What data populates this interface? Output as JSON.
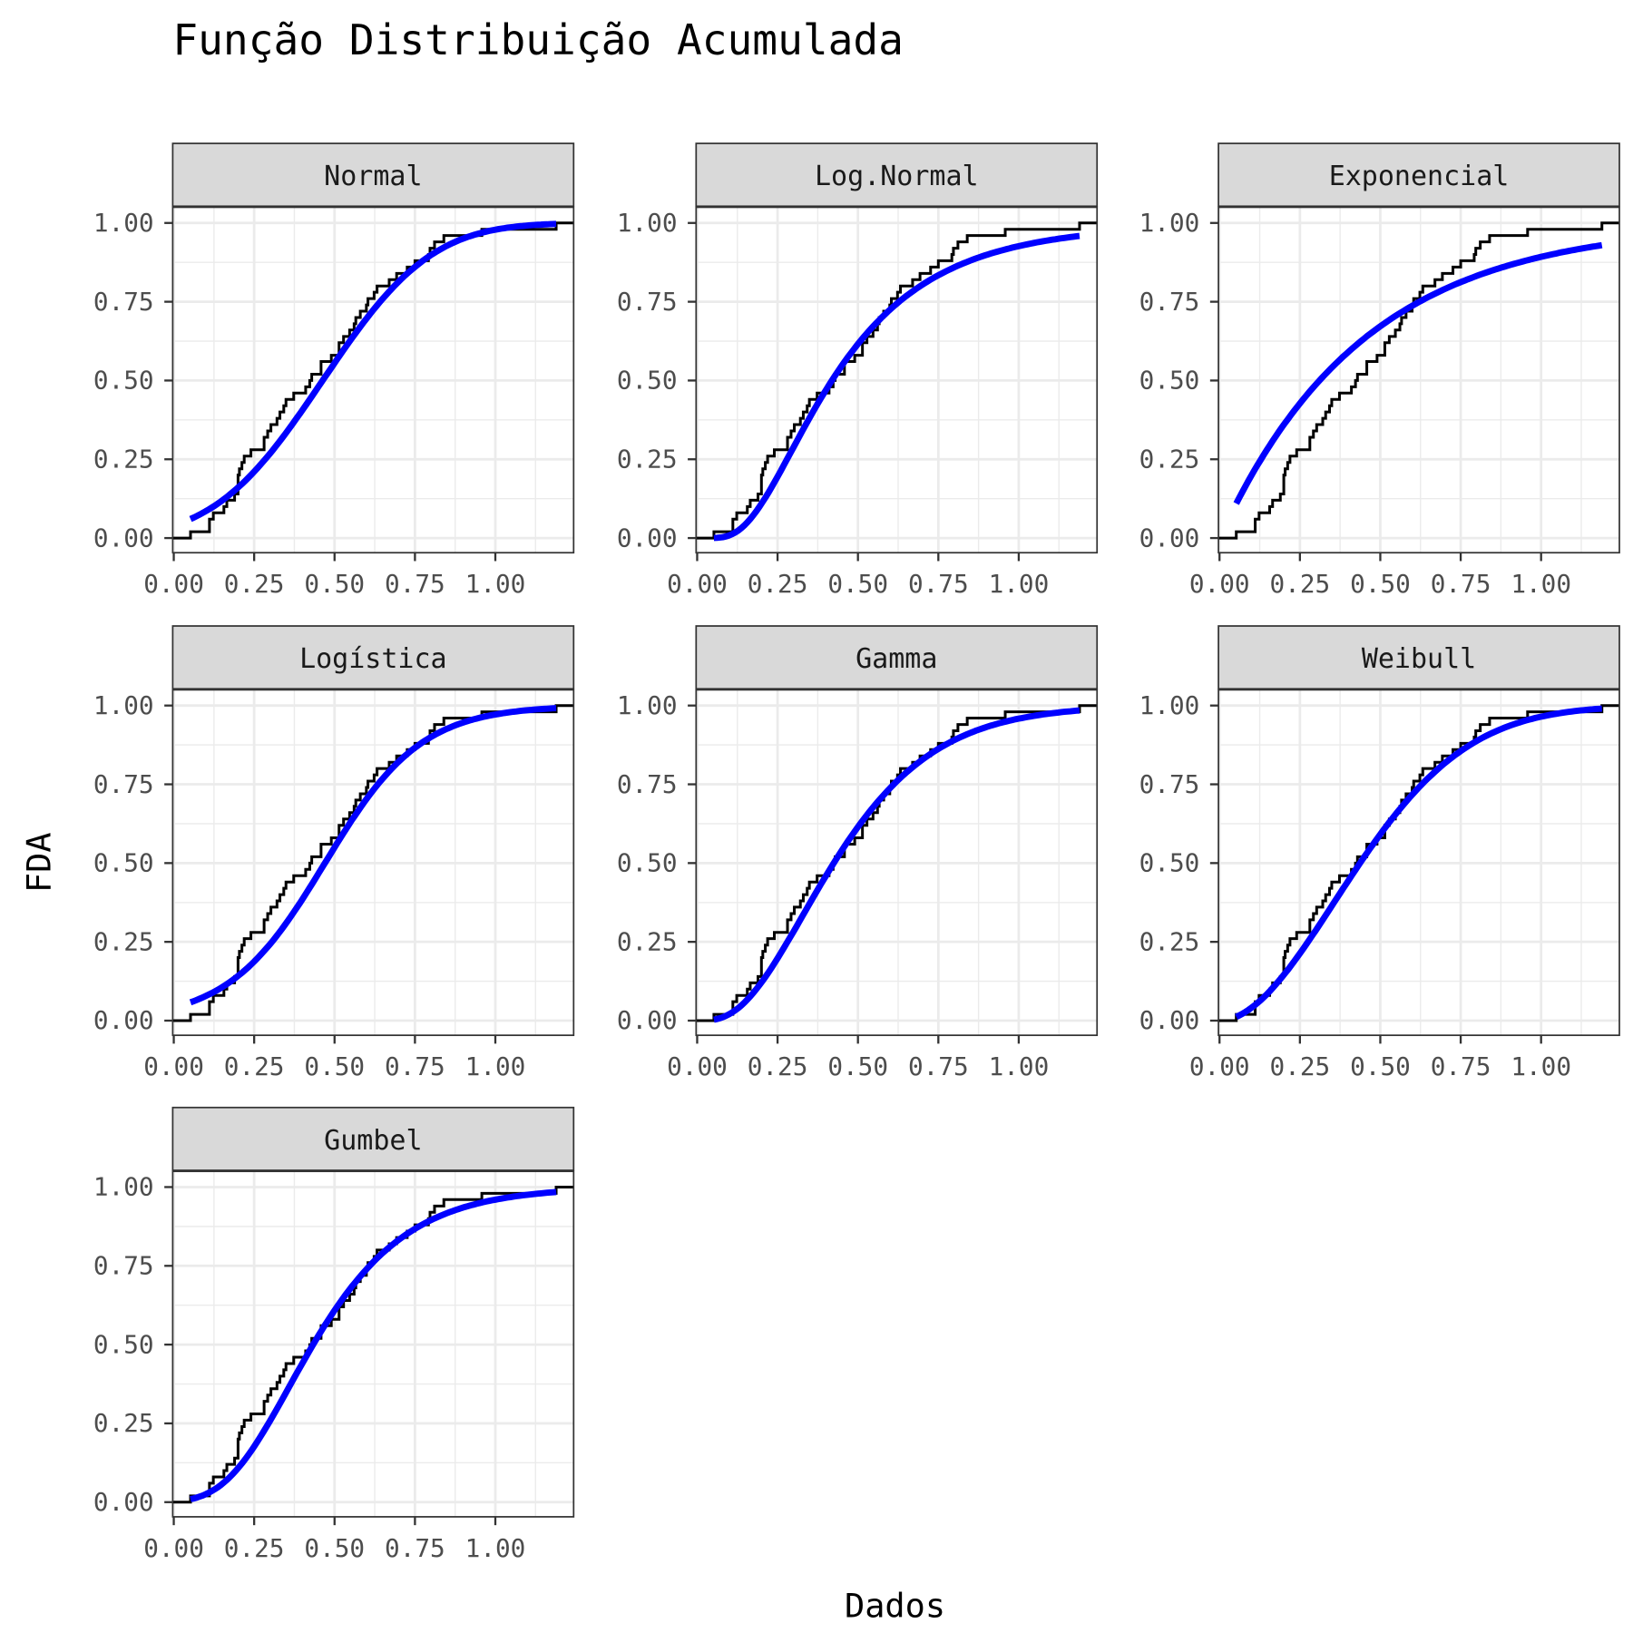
{
  "chart_data": {
    "type": "line",
    "title": "Função Distribuição Acumulada",
    "xlabel": "Dados",
    "ylabel": "FDA",
    "xlim": [
      0,
      1.247
    ],
    "ylim": [
      -0.05,
      1.05
    ],
    "x_ticks": [
      "0.00",
      "0.25",
      "0.50",
      "0.75",
      "1.00"
    ],
    "x_tick_values": [
      0,
      0.25,
      0.5,
      0.75,
      1.0
    ],
    "y_ticks": [
      "0.00",
      "0.25",
      "0.50",
      "0.75",
      "1.00"
    ],
    "y_tick_values": [
      0,
      0.25,
      0.5,
      0.75,
      1.0
    ],
    "grid": true,
    "colors": {
      "ecdf": "#000000",
      "fit": "#0000ff",
      "strip": "#d9d9d9",
      "grid": "#ebebeb"
    },
    "sample": [
      0.052,
      0.111,
      0.111,
      0.123,
      0.156,
      0.165,
      0.189,
      0.2,
      0.2,
      0.2,
      0.204,
      0.212,
      0.219,
      0.24,
      0.281,
      0.281,
      0.292,
      0.302,
      0.321,
      0.33,
      0.342,
      0.349,
      0.373,
      0.41,
      0.423,
      0.429,
      0.458,
      0.458,
      0.49,
      0.514,
      0.514,
      0.528,
      0.547,
      0.561,
      0.566,
      0.58,
      0.599,
      0.604,
      0.623,
      0.632,
      0.67,
      0.693,
      0.726,
      0.75,
      0.792,
      0.797,
      0.811,
      0.84,
      0.958,
      1.189
    ],
    "panels": [
      {
        "name": "Normal",
        "dist": "normal",
        "params": {
          "mean": 0.463,
          "sd": 0.265
        }
      },
      {
        "name": "Log.Normal",
        "dist": "lognormal",
        "params": {
          "meanlog": -0.87,
          "sdlog": 0.6
        }
      },
      {
        "name": "Exponencial",
        "dist": "exponential",
        "params": {
          "rate": 2.23
        }
      },
      {
        "name": "Logística",
        "dist": "logistic",
        "params": {
          "location": 0.47,
          "scale": 0.15
        }
      },
      {
        "name": "Gamma",
        "dist": "gamma",
        "params": {
          "shape": 3.3,
          "rate": 7.0
        }
      },
      {
        "name": "Weibull",
        "dist": "weibull",
        "params": {
          "shape": 1.9,
          "scale": 0.53
        }
      },
      {
        "name": "Gumbel",
        "dist": "gumbel",
        "params": {
          "location": 0.36,
          "scale": 0.2
        }
      }
    ]
  }
}
